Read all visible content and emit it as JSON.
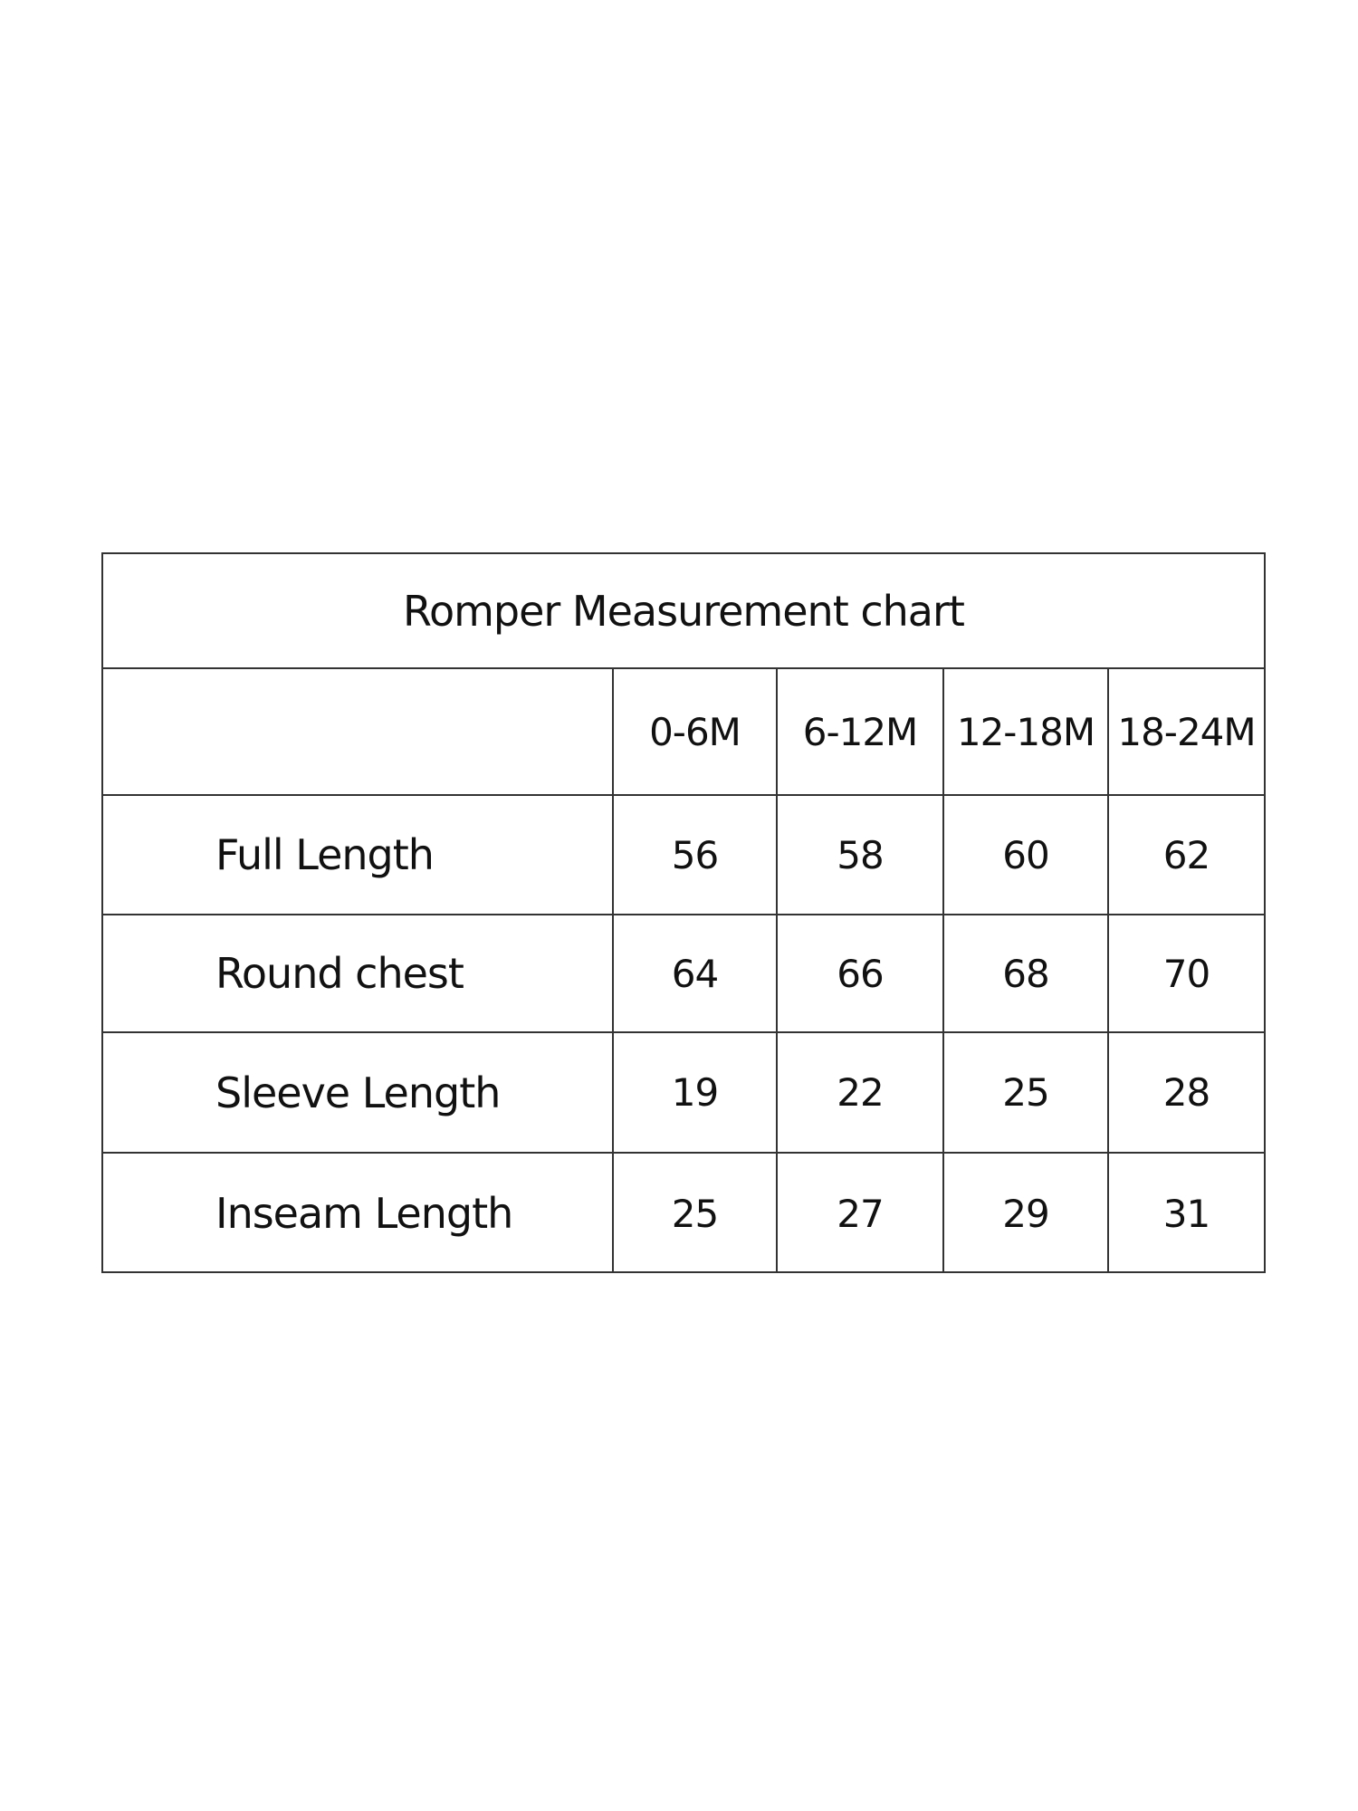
{
  "chart_data": {
    "type": "table",
    "title": "Romper Measurement chart",
    "columns": [
      "0-6M",
      "6-12M",
      "12-18M",
      "18-24M"
    ],
    "rows": [
      {
        "label": "Full Length",
        "values": [
          "56",
          "58",
          "60",
          "62"
        ]
      },
      {
        "label": "Round chest",
        "values": [
          "64",
          "66",
          "68",
          "70"
        ]
      },
      {
        "label": "Sleeve Length",
        "values": [
          "19",
          "22",
          "25",
          "28"
        ]
      },
      {
        "label": "Inseam Length",
        "values": [
          "25",
          "27",
          "29",
          "31"
        ]
      }
    ]
  }
}
